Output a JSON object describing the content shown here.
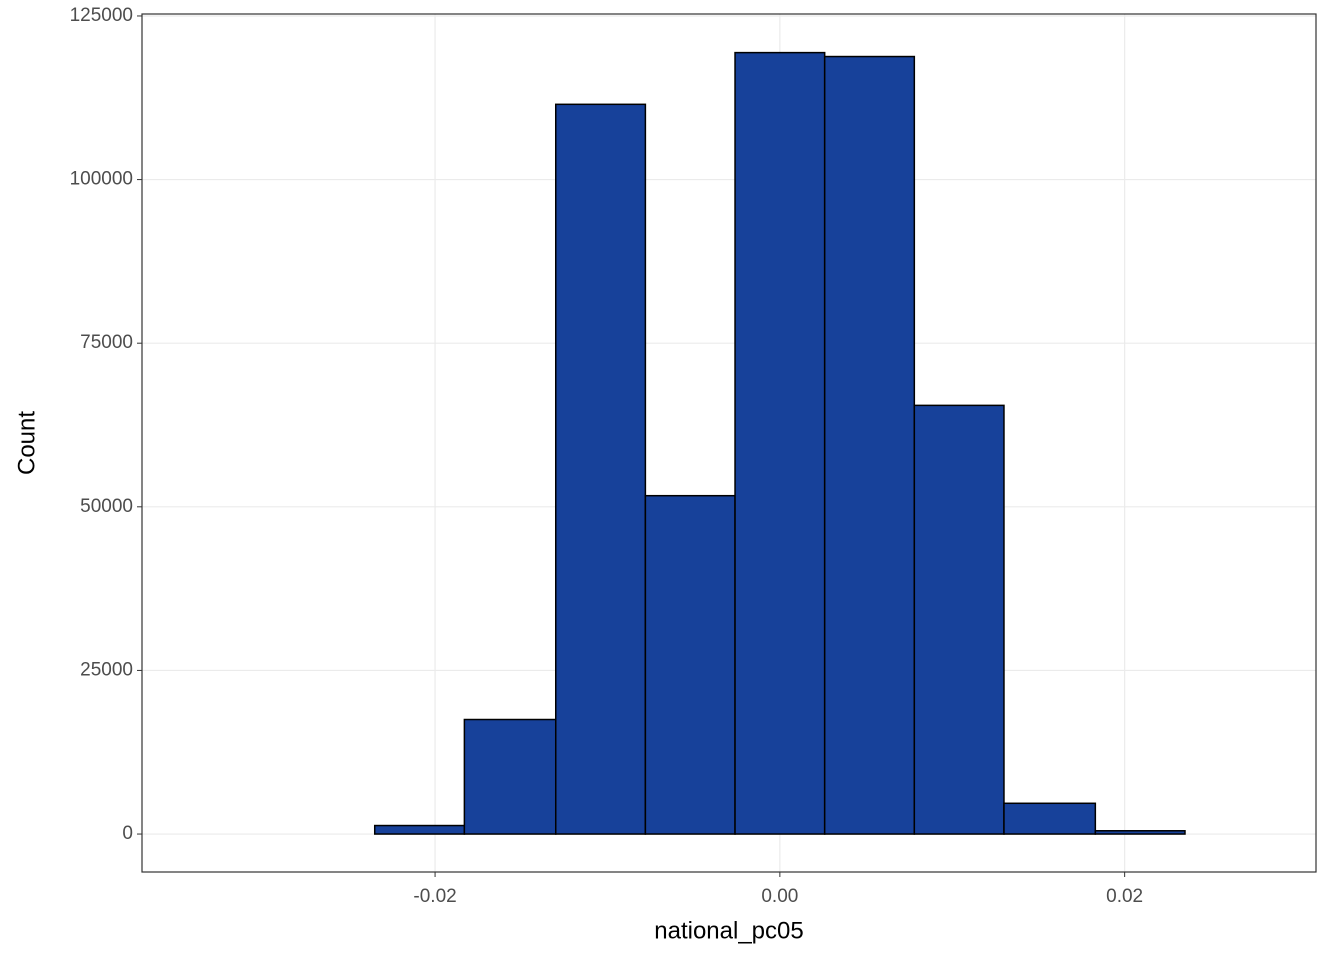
{
  "chart_data": {
    "type": "histogram",
    "x_label": "national_pc05",
    "y_label": "Count",
    "bins": [
      -0.0339,
      -0.0287,
      -0.0235,
      -0.0183,
      -0.013,
      -0.0078,
      -0.0026,
      0.0026,
      0.0078,
      0.013,
      0.0183,
      0.0235,
      0.0287
    ],
    "values": [
      0,
      0,
      1300,
      17500,
      111500,
      51700,
      119400,
      118800,
      65500,
      4700,
      500,
      0
    ],
    "color": "#17419a",
    "edgecolor": "#000000",
    "xlim": [
      -0.037,
      0.0311
    ],
    "ylim": [
      -5800,
      131000
    ],
    "xticks": [
      -0.02,
      {
        "value": 0,
        "label": "0.00"
      },
      0.02
    ],
    "yticks": [
      0,
      25000,
      50000,
      75000,
      100000,
      125000
    ],
    "grid": true
  }
}
